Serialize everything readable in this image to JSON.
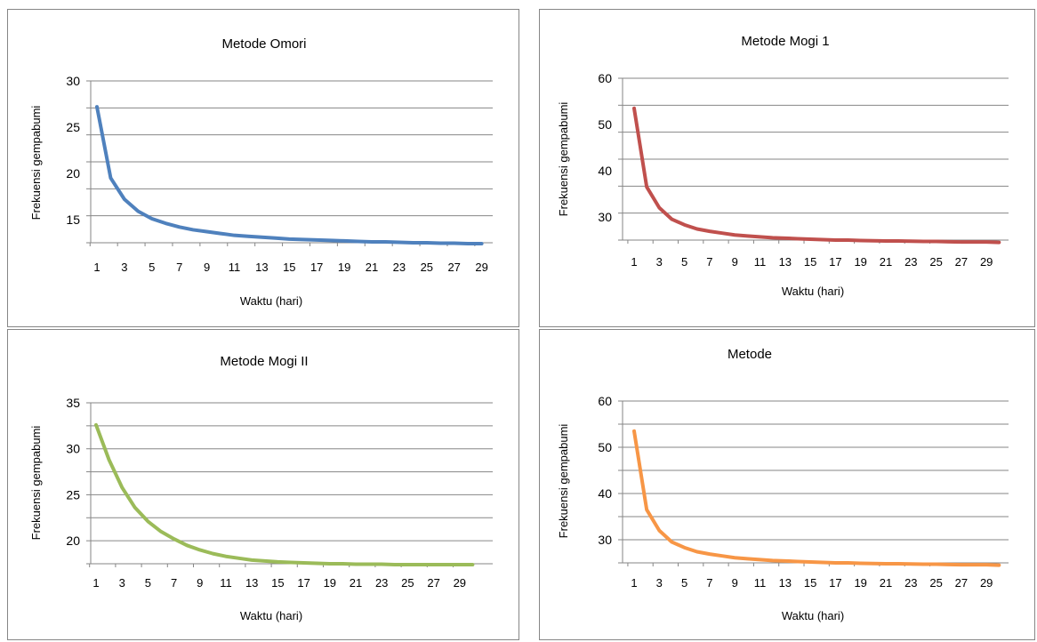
{
  "chart_data": [
    {
      "type": "line",
      "title": "Metode Omori",
      "xlabel": "Waktu (hari)",
      "ylabel": "Frekuensi gempabumi",
      "ylim": [
        12.5,
        30
      ],
      "yticks": [
        15,
        20,
        25,
        30
      ],
      "grid": true,
      "color": "#4f81bd",
      "categories": [
        1,
        2,
        3,
        4,
        5,
        6,
        7,
        8,
        9,
        10,
        11,
        12,
        13,
        14,
        15,
        16,
        17,
        18,
        19,
        20,
        21,
        22,
        23,
        24,
        25,
        26,
        27,
        28,
        29
      ],
      "xtick_labels": [
        "1",
        "3",
        "5",
        "7",
        "9",
        "11",
        "13",
        "15",
        "17",
        "19",
        "21",
        "23",
        "25",
        "27",
        "29"
      ],
      "series": [
        {
          "values": [
            27.2,
            19.5,
            17.2,
            15.9,
            15.1,
            14.6,
            14.2,
            13.9,
            13.7,
            13.5,
            13.3,
            13.2,
            13.1,
            13.0,
            12.9,
            12.85,
            12.8,
            12.75,
            12.7,
            12.65,
            12.6,
            12.6,
            12.55,
            12.5,
            12.5,
            12.45,
            12.45,
            12.4,
            12.4
          ]
        }
      ]
    },
    {
      "type": "line",
      "title": "Metode Mogi 1",
      "xlabel": "Waktu (hari)",
      "ylabel": "Frekuensi gempabumi",
      "ylim": [
        25,
        60
      ],
      "yticks": [
        30,
        40,
        50,
        60
      ],
      "grid": true,
      "color": "#c0504d",
      "categories": [
        1,
        2,
        3,
        4,
        5,
        6,
        7,
        8,
        9,
        10,
        11,
        12,
        13,
        14,
        15,
        16,
        17,
        18,
        19,
        20,
        21,
        22,
        23,
        24,
        25,
        26,
        27,
        28,
        29,
        30
      ],
      "xtick_labels": [
        "1",
        "3",
        "5",
        "7",
        "9",
        "11",
        "13",
        "15",
        "17",
        "19",
        "21",
        "23",
        "25",
        "27",
        "29"
      ],
      "series": [
        {
          "values": [
            53.5,
            36.5,
            32.0,
            29.5,
            28.3,
            27.4,
            26.9,
            26.5,
            26.1,
            25.9,
            25.7,
            25.5,
            25.4,
            25.3,
            25.2,
            25.1,
            25.0,
            25.0,
            24.9,
            24.85,
            24.8,
            24.8,
            24.75,
            24.7,
            24.7,
            24.65,
            24.6,
            24.6,
            24.6,
            24.5
          ]
        }
      ]
    },
    {
      "type": "line",
      "title": "Metode Mogi II",
      "xlabel": "Waktu (hari)",
      "ylabel": "Frekuensi gempabumi",
      "ylim": [
        17.5,
        35
      ],
      "yticks": [
        20,
        25,
        30,
        35
      ],
      "grid": true,
      "color": "#9bbb59",
      "categories": [
        1,
        2,
        3,
        4,
        5,
        6,
        7,
        8,
        9,
        10,
        11,
        12,
        13,
        14,
        15,
        16,
        17,
        18,
        19,
        20,
        21,
        22,
        23,
        24,
        25,
        26,
        27,
        28,
        29,
        30
      ],
      "xtick_labels": [
        "1",
        "3",
        "5",
        "7",
        "9",
        "11",
        "13",
        "15",
        "17",
        "19",
        "21",
        "23",
        "25",
        "27",
        "29"
      ],
      "series": [
        {
          "values": [
            32.6,
            28.8,
            25.8,
            23.6,
            22.1,
            21.0,
            20.2,
            19.5,
            19.0,
            18.6,
            18.3,
            18.1,
            17.9,
            17.8,
            17.7,
            17.65,
            17.6,
            17.55,
            17.5,
            17.5,
            17.45,
            17.45,
            17.45,
            17.4,
            17.4,
            17.4,
            17.4,
            17.4,
            17.4,
            17.4
          ]
        }
      ]
    },
    {
      "type": "line",
      "title": "Metode",
      "xlabel": "Waktu (hari)",
      "ylabel": "Frekuensi gempabumi",
      "ylim": [
        25,
        60
      ],
      "yticks": [
        30,
        40,
        50,
        60
      ],
      "grid": true,
      "color": "#f79646",
      "categories": [
        1,
        2,
        3,
        4,
        5,
        6,
        7,
        8,
        9,
        10,
        11,
        12,
        13,
        14,
        15,
        16,
        17,
        18,
        19,
        20,
        21,
        22,
        23,
        24,
        25,
        26,
        27,
        28,
        29,
        30
      ],
      "xtick_labels": [
        "1",
        "3",
        "5",
        "7",
        "9",
        "11",
        "13",
        "15",
        "17",
        "19",
        "21",
        "23",
        "25",
        "27",
        "29"
      ],
      "series": [
        {
          "values": [
            53.5,
            36.5,
            32.0,
            29.5,
            28.3,
            27.4,
            26.9,
            26.5,
            26.1,
            25.9,
            25.7,
            25.5,
            25.4,
            25.3,
            25.2,
            25.1,
            25.0,
            25.0,
            24.9,
            24.85,
            24.8,
            24.8,
            24.75,
            24.7,
            24.7,
            24.65,
            24.6,
            24.6,
            24.6,
            24.5
          ]
        }
      ]
    }
  ]
}
